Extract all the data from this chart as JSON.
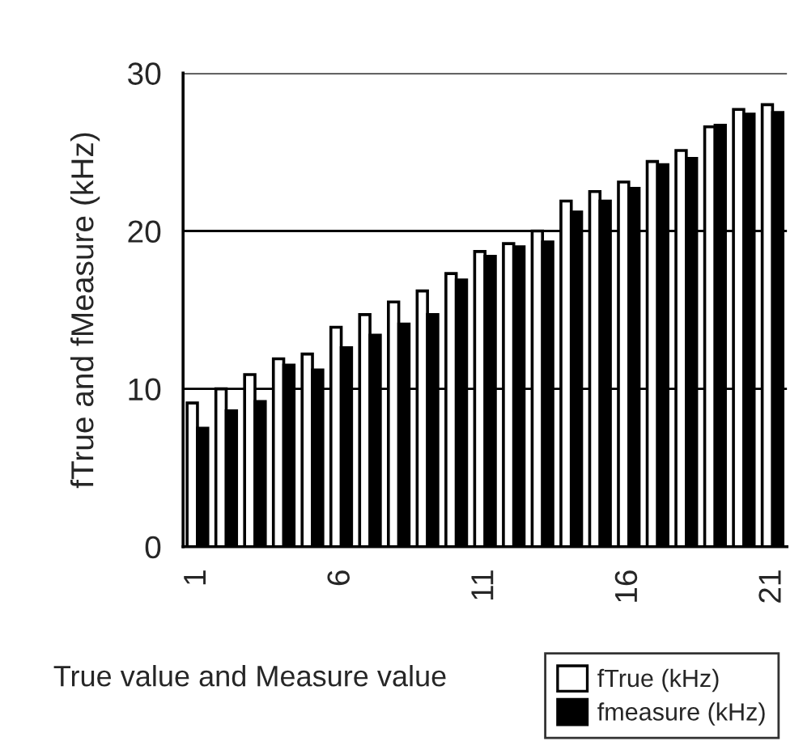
{
  "chart_data": {
    "type": "bar",
    "xlabel": "True value and Measure value",
    "ylabel": "fTrue and fMeasure (kHz)",
    "categories": [
      "1",
      null,
      null,
      null,
      null,
      "6",
      null,
      null,
      null,
      null,
      "11",
      null,
      null,
      null,
      null,
      "16",
      null,
      null,
      null,
      null,
      "21"
    ],
    "series": [
      {
        "name": "fTrue (kHz)",
        "color": "#ffffff",
        "values": [
          9.1,
          10.0,
          10.9,
          11.9,
          12.2,
          13.9,
          14.7,
          15.5,
          16.2,
          17.3,
          18.7,
          19.2,
          20.0,
          21.9,
          22.5,
          23.1,
          24.4,
          25.1,
          26.6,
          27.7,
          28.0
        ]
      },
      {
        "name": "fmeasure (kHz)",
        "color": "#000000",
        "values": [
          7.5,
          8.6,
          9.2,
          11.5,
          11.2,
          12.6,
          13.4,
          14.1,
          14.7,
          16.9,
          18.4,
          19.0,
          19.3,
          21.2,
          21.9,
          22.7,
          24.2,
          24.6,
          26.7,
          27.4,
          27.5
        ]
      }
    ],
    "ylim": [
      0,
      30
    ],
    "yticks": [
      0,
      10,
      20,
      30
    ],
    "grid": "y",
    "legend": "bottom right"
  }
}
